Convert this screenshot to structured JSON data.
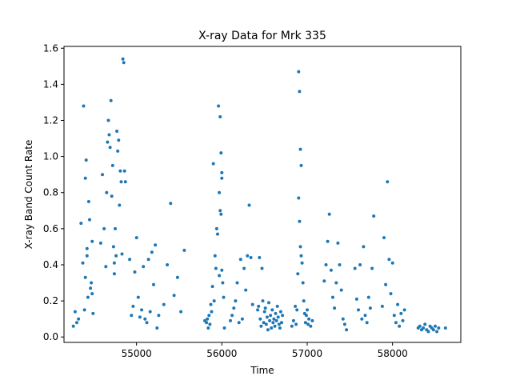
{
  "chart_data": {
    "type": "scatter",
    "title": "X-ray Data for Mrk 335",
    "xlabel": "Time",
    "ylabel": "X-ray Band Count Rate",
    "xlim": [
      54150,
      58800
    ],
    "ylim": [
      -0.03,
      1.61
    ],
    "xticks": [
      55000,
      56000,
      57000,
      58000
    ],
    "xtick_labels": [
      "55000",
      "56000",
      "57000",
      "58000"
    ],
    "yticks": [
      0.0,
      0.2,
      0.4,
      0.6,
      0.8,
      1.0,
      1.2,
      1.4,
      1.6
    ],
    "ytick_labels": [
      "0.0",
      "0.2",
      "0.4",
      "0.6",
      "0.8",
      "1.0",
      "1.2",
      "1.4",
      "1.6"
    ],
    "grid": false,
    "marker_color": "#1f77b4",
    "series": [
      {
        "x": [
          54260,
          54280,
          54300,
          54320,
          54350,
          54370,
          54380,
          54390,
          54400,
          54400,
          54410,
          54420,
          54420,
          54430,
          54440,
          54450,
          54460,
          54470,
          54480,
          54480,
          54490,
          54580,
          54600,
          54620,
          54640,
          54650,
          54660,
          54670,
          54680,
          54690,
          54700,
          54710,
          54720,
          54730,
          54740,
          54740,
          54750,
          54760,
          54770,
          54780,
          54790,
          54800,
          54810,
          54820,
          54830,
          54840,
          54850,
          54860,
          54870,
          54920,
          54940,
          54960,
          54980,
          55000,
          55020,
          55040,
          55060,
          55080,
          55100,
          55120,
          55140,
          55160,
          55180,
          55200,
          55220,
          55240,
          55260,
          55320,
          55360,
          55400,
          55440,
          55480,
          55520,
          55560,
          55800,
          55820,
          55830,
          55840,
          55850,
          55860,
          55870,
          55880,
          55890,
          55900,
          55910,
          55920,
          55930,
          55940,
          55950,
          55960,
          55970,
          55970,
          55980,
          55980,
          55990,
          55990,
          56000,
          56000,
          56000,
          56010,
          56020,
          56030,
          56100,
          56120,
          56140,
          56160,
          56180,
          56200,
          56220,
          56240,
          56260,
          56280,
          56300,
          56320,
          56340,
          56360,
          56420,
          56430,
          56440,
          56450,
          56460,
          56470,
          56480,
          56490,
          56500,
          56510,
          56520,
          56530,
          56540,
          56550,
          56560,
          56570,
          56580,
          56590,
          56600,
          56610,
          56620,
          56630,
          56640,
          56650,
          56660,
          56670,
          56680,
          56690,
          56700,
          56710,
          56820,
          56840,
          56860,
          56870,
          56880,
          56890,
          56900,
          56900,
          56910,
          56910,
          56920,
          56920,
          56930,
          56930,
          56940,
          56950,
          56960,
          56970,
          56980,
          56990,
          57000,
          57010,
          57020,
          57040,
          57060,
          57200,
          57220,
          57240,
          57260,
          57280,
          57300,
          57320,
          57340,
          57360,
          57380,
          57400,
          57420,
          57440,
          57460,
          57560,
          57580,
          57600,
          57620,
          57640,
          57660,
          57680,
          57700,
          57720,
          57740,
          57760,
          57780,
          57880,
          57900,
          57920,
          57940,
          57960,
          57980,
          58000,
          58020,
          58040,
          58060,
          58080,
          58100,
          58120,
          58140,
          58300,
          58320,
          58340,
          58360,
          58380,
          58400,
          58420,
          58440,
          58460,
          58480,
          58500,
          58520,
          58540,
          58620
        ],
        "y": [
          0.06,
          0.14,
          0.08,
          0.1,
          0.63,
          0.41,
          1.28,
          0.15,
          0.88,
          0.33,
          0.98,
          0.45,
          0.49,
          0.22,
          0.75,
          0.65,
          0.27,
          0.3,
          0.53,
          0.24,
          0.13,
          0.52,
          0.9,
          0.6,
          0.39,
          0.8,
          1.08,
          1.2,
          1.12,
          1.05,
          1.31,
          0.78,
          0.95,
          0.5,
          0.35,
          0.41,
          0.6,
          0.45,
          1.14,
          1.03,
          1.09,
          0.73,
          0.92,
          0.86,
          0.46,
          1.54,
          1.52,
          0.92,
          0.86,
          0.43,
          0.12,
          0.17,
          0.36,
          0.55,
          0.22,
          0.11,
          0.15,
          0.39,
          0.1,
          0.08,
          0.43,
          0.14,
          0.47,
          0.29,
          0.51,
          0.05,
          0.12,
          0.18,
          0.4,
          0.74,
          0.23,
          0.33,
          0.14,
          0.48,
          0.09,
          0.08,
          0.1,
          0.05,
          0.12,
          0.07,
          0.18,
          0.14,
          0.28,
          0.96,
          0.2,
          0.45,
          0.38,
          0.6,
          0.57,
          1.28,
          0.34,
          0.8,
          1.22,
          0.7,
          0.68,
          1.02,
          0.91,
          0.88,
          0.37,
          0.3,
          0.22,
          0.05,
          0.09,
          0.12,
          0.16,
          0.2,
          0.3,
          0.08,
          0.43,
          0.1,
          0.38,
          0.26,
          0.45,
          0.73,
          0.44,
          0.18,
          0.15,
          0.17,
          0.44,
          0.1,
          0.06,
          0.38,
          0.2,
          0.08,
          0.14,
          0.16,
          0.07,
          0.11,
          0.04,
          0.19,
          0.09,
          0.12,
          0.05,
          0.15,
          0.08,
          0.1,
          0.06,
          0.13,
          0.09,
          0.17,
          0.11,
          0.07,
          0.05,
          0.14,
          0.08,
          0.12,
          0.06,
          0.09,
          0.17,
          0.07,
          0.15,
          0.35,
          1.47,
          0.77,
          1.36,
          0.64,
          0.5,
          1.04,
          0.95,
          0.45,
          0.41,
          0.3,
          0.2,
          0.13,
          0.08,
          0.12,
          0.15,
          0.07,
          0.1,
          0.06,
          0.09,
          0.31,
          0.4,
          0.53,
          0.68,
          0.37,
          0.22,
          0.16,
          0.3,
          0.52,
          0.4,
          0.26,
          0.1,
          0.07,
          0.04,
          0.38,
          0.21,
          0.15,
          0.4,
          0.1,
          0.5,
          0.12,
          0.08,
          0.22,
          0.16,
          0.38,
          0.67,
          0.17,
          0.55,
          0.29,
          0.86,
          0.43,
          0.24,
          0.41,
          0.12,
          0.08,
          0.18,
          0.06,
          0.13,
          0.09,
          0.15,
          0.05,
          0.06,
          0.04,
          0.05,
          0.07,
          0.04,
          0.03,
          0.06,
          0.05,
          0.04,
          0.06,
          0.03,
          0.05,
          0.05
        ]
      }
    ]
  }
}
